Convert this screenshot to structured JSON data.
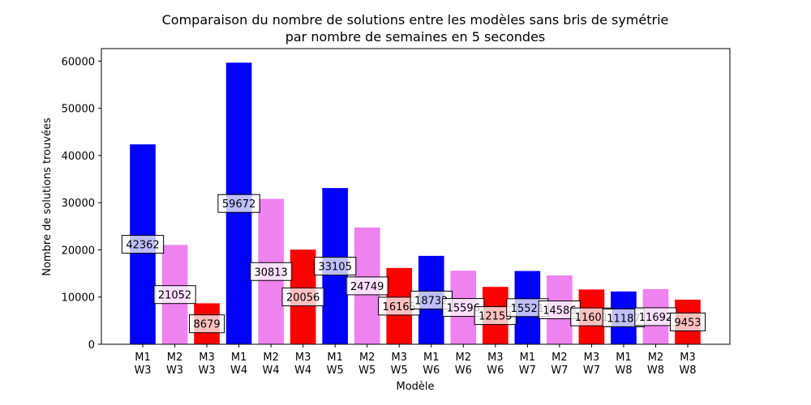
{
  "chart_data": {
    "type": "bar",
    "title": "Comparaison du nombre de solutions entre les modèles sans bris de symétrie",
    "subtitle": "par nombre de semaines en 5 secondes",
    "x_label": "Modèle",
    "y_label": "Nombre de solutions trouvées",
    "categories": [
      "M1\nW3",
      "M2\nW3",
      "M3\nW3",
      "M1\nW4",
      "M2\nW4",
      "M3\nW4",
      "M1\nW5",
      "M2\nW5",
      "M3\nW5",
      "M1\nW6",
      "M2\nW6",
      "M3\nW6",
      "M1\nW7",
      "M2\nW7",
      "M3\nW7",
      "M1\nW8",
      "M2\nW8",
      "M3\nW8"
    ],
    "values": [
      42362,
      21052,
      8679,
      59672,
      30813,
      20056,
      33105,
      24749,
      16165,
      18732,
      15596,
      12153,
      15521,
      14586,
      11601,
      11187,
      11692,
      9453
    ],
    "colors": [
      "#0000ff",
      "#ee82ee",
      "#ff0000",
      "#0000ff",
      "#ee82ee",
      "#ff0000",
      "#0000ff",
      "#ee82ee",
      "#ff0000",
      "#0000ff",
      "#ee82ee",
      "#ff0000",
      "#0000ff",
      "#ee82ee",
      "#ff0000",
      "#0000ff",
      "#ee82ee",
      "#ff0000"
    ],
    "ylim": [
      0,
      62656
    ],
    "yticks": [
      0,
      10000,
      20000,
      30000,
      40000,
      50000,
      60000
    ]
  }
}
